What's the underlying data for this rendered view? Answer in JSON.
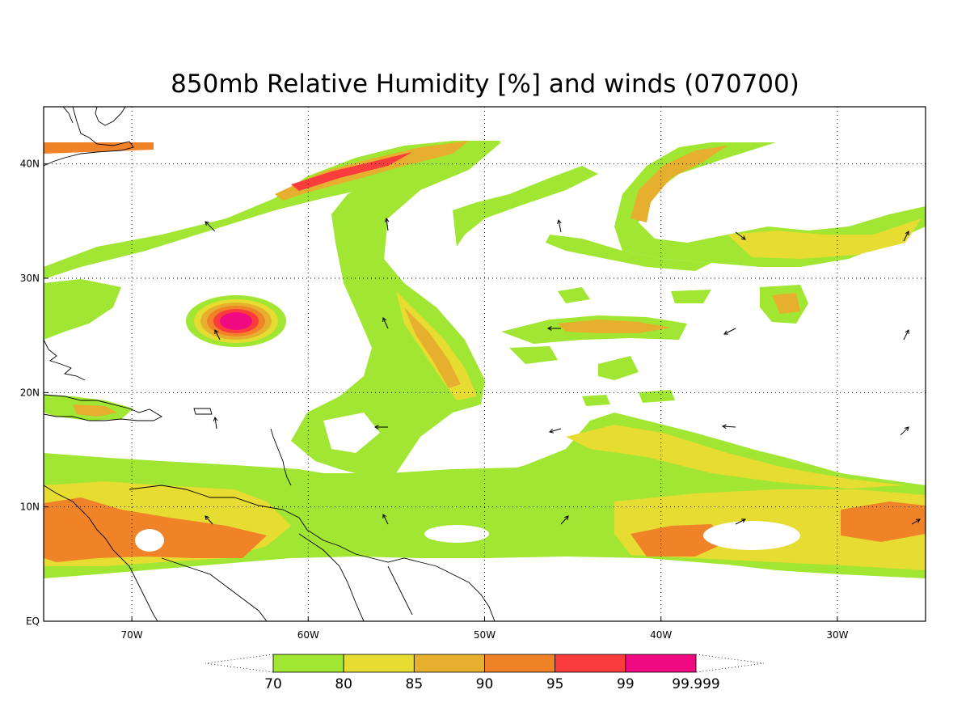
{
  "title": "850mb Relative Humidity [%] and winds (070700)",
  "map": {
    "lon_range": [
      -75,
      -25
    ],
    "lat_range": [
      0,
      45
    ],
    "gridlines": "dotted"
  },
  "lon_ticks": [
    {
      "lon": -70,
      "label": "70W"
    },
    {
      "lon": -60,
      "label": "60W"
    },
    {
      "lon": -50,
      "label": "50W"
    },
    {
      "lon": -40,
      "label": "40W"
    },
    {
      "lon": -30,
      "label": "30W"
    }
  ],
  "lat_ticks": [
    {
      "lat": 0,
      "label": "EQ"
    },
    {
      "lat": 10,
      "label": "10N"
    },
    {
      "lat": 20,
      "label": "20N"
    },
    {
      "lat": 30,
      "label": "30N"
    },
    {
      "lat": 40,
      "label": "40N"
    }
  ],
  "colorbar": {
    "levels": [
      "70",
      "80",
      "85",
      "90",
      "95",
      "99",
      "99.999"
    ],
    "colors": [
      "#a0e632",
      "#e6dc32",
      "#e6af2d",
      "#f08228",
      "#fa3c3c",
      "#f00a82"
    ]
  },
  "colors": {
    "background": "#ffffff",
    "lines": "#000000"
  }
}
